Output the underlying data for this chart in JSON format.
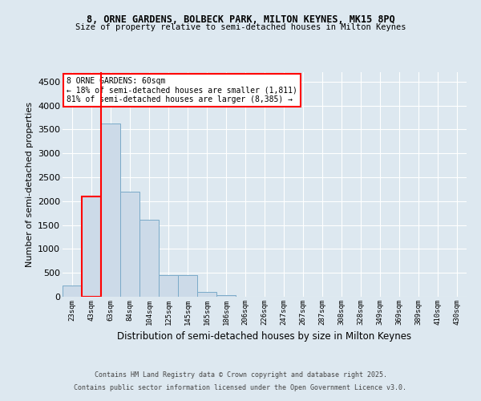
{
  "title1": "8, ORNE GARDENS, BOLBECK PARK, MILTON KEYNES, MK15 8PQ",
  "title2": "Size of property relative to semi-detached houses in Milton Keynes",
  "xlabel": "Distribution of semi-detached houses by size in Milton Keynes",
  "ylabel": "Number of semi-detached properties",
  "categories": [
    "23sqm",
    "43sqm",
    "63sqm",
    "84sqm",
    "104sqm",
    "125sqm",
    "145sqm",
    "165sqm",
    "186sqm",
    "206sqm",
    "226sqm",
    "247sqm",
    "267sqm",
    "287sqm",
    "308sqm",
    "328sqm",
    "349sqm",
    "369sqm",
    "389sqm",
    "410sqm",
    "430sqm"
  ],
  "values": [
    230,
    2100,
    3620,
    2200,
    1610,
    450,
    450,
    100,
    40,
    0,
    0,
    0,
    0,
    0,
    0,
    0,
    0,
    0,
    0,
    0,
    0
  ],
  "bar_color": "#ccdae8",
  "bar_edge_color": "#7aaac8",
  "highlight_color": "#ff0000",
  "highlight_bar_index": 2,
  "annotation_text_line1": "8 ORNE GARDENS: 60sqm",
  "annotation_text_line2": "← 18% of semi-detached houses are smaller (1,811)",
  "annotation_text_line3": "81% of semi-detached houses are larger (8,385) →",
  "ylim": [
    0,
    4700
  ],
  "yticks": [
    0,
    500,
    1000,
    1500,
    2000,
    2500,
    3000,
    3500,
    4000,
    4500
  ],
  "bg_color": "#dde8f0",
  "plot_bg_color": "#dde8f0",
  "grid_color": "#ffffff",
  "footer1": "Contains HM Land Registry data © Crown copyright and database right 2025.",
  "footer2": "Contains public sector information licensed under the Open Government Licence v3.0."
}
